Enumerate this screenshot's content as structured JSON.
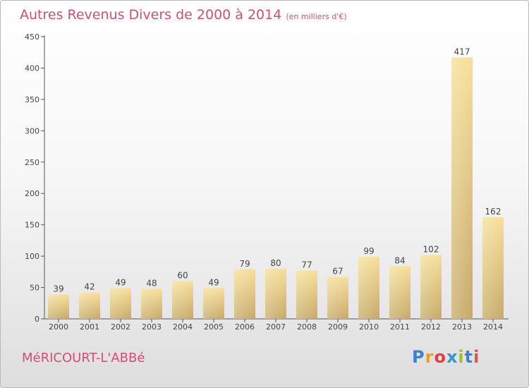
{
  "title": "Autres Revenus Divers de 2000 à 2014",
  "title_unit": "(en milliers d'€)",
  "place_name": "MéRICOURT-L'ABBé",
  "logo": {
    "letters": [
      "P",
      "r",
      "o",
      "x",
      "i",
      "t",
      "i"
    ],
    "colors": [
      "#3d7fd0",
      "#e8a020",
      "#e04040",
      "#2a9ad0",
      "#a0c020",
      "#3d7fd0",
      "#e05050"
    ]
  },
  "colors": {
    "accent": "#d05070",
    "bar_light": "#f5dc90",
    "bar_dark": "#c8ac68"
  },
  "chart_data": {
    "type": "bar",
    "categories": [
      "2000",
      "2001",
      "2002",
      "2003",
      "2004",
      "2005",
      "2006",
      "2007",
      "2008",
      "2009",
      "2010",
      "2011",
      "2012",
      "2013",
      "2014"
    ],
    "values": [
      39,
      42,
      49,
      48,
      60,
      49,
      79,
      80,
      77,
      67,
      99,
      84,
      102,
      417,
      162
    ],
    "ylim": [
      0,
      450
    ],
    "yticks": [
      0,
      50,
      100,
      150,
      200,
      250,
      300,
      350,
      400,
      450
    ],
    "grid": false,
    "legend": "none"
  }
}
